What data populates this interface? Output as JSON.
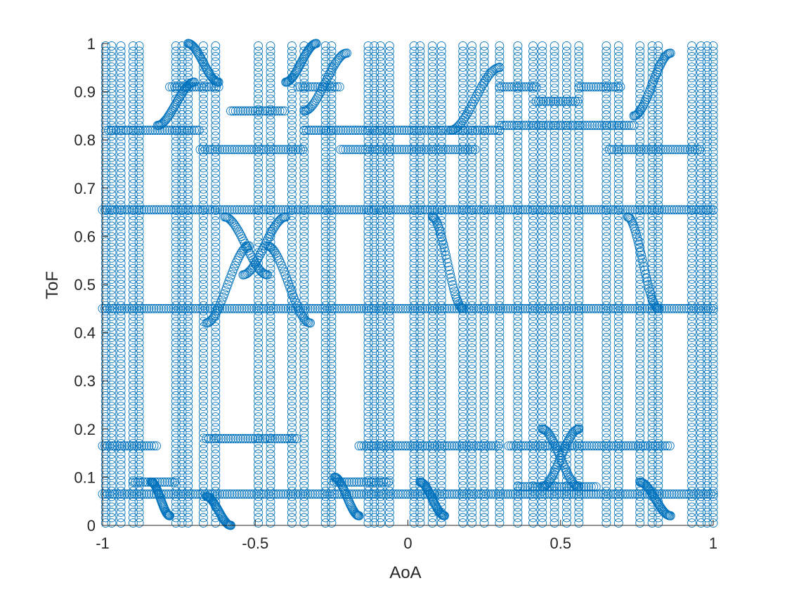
{
  "chart_data": {
    "type": "scatter",
    "title": "",
    "xlabel": "AoA",
    "ylabel": "ToF",
    "xlim": [
      -1,
      1
    ],
    "ylim": [
      0,
      1
    ],
    "xticks": [
      -1,
      -0.5,
      0,
      0.5,
      1
    ],
    "xtick_labels": [
      "-1",
      "-0.5",
      "0",
      "0.5",
      "1"
    ],
    "yticks": [
      0,
      0.1,
      0.2,
      0.3,
      0.4,
      0.5,
      0.6,
      0.7,
      0.8,
      0.9,
      1
    ],
    "ytick_labels": [
      "0",
      "0.1",
      "0.2",
      "0.3",
      "0.4",
      "0.5",
      "0.6",
      "0.7",
      "0.8",
      "0.9",
      "1"
    ],
    "grid": false,
    "legend": "none",
    "marker": "open-circle",
    "series_color": "#0072BD",
    "vertical_tracks_aoa": [
      -0.99,
      -0.97,
      -0.94,
      -0.9,
      -0.88,
      -0.76,
      -0.74,
      -0.72,
      -0.67,
      -0.63,
      -0.49,
      -0.45,
      -0.38,
      -0.34,
      -0.27,
      -0.25,
      -0.13,
      -0.11,
      -0.09,
      -0.06,
      0.02,
      0.04,
      0.08,
      0.11,
      0.18,
      0.21,
      0.25,
      0.3,
      0.36,
      0.41,
      0.44,
      0.48,
      0.52,
      0.56,
      0.65,
      0.69,
      0.76,
      0.8,
      0.82,
      0.93,
      0.96,
      0.98,
      1.0
    ],
    "horizontal_bands": [
      {
        "tof": 0.065,
        "aoa_range": [
          -1.0,
          1.0
        ]
      },
      {
        "tof": 0.45,
        "aoa_range": [
          -1.0,
          1.0
        ]
      },
      {
        "tof": 0.655,
        "aoa_range": [
          -1.0,
          1.0
        ]
      },
      {
        "tof": 0.165,
        "aoa_range": [
          -1.0,
          -0.82
        ]
      },
      {
        "tof": 0.18,
        "aoa_range": [
          -0.66,
          -0.36
        ]
      },
      {
        "tof": 0.165,
        "aoa_range": [
          -0.16,
          0.3
        ]
      },
      {
        "tof": 0.165,
        "aoa_range": [
          0.33,
          0.86
        ]
      },
      {
        "tof": 0.78,
        "aoa_range": [
          -0.68,
          -0.34
        ]
      },
      {
        "tof": 0.82,
        "aoa_range": [
          -0.98,
          -0.68
        ]
      },
      {
        "tof": 0.82,
        "aoa_range": [
          -0.34,
          0.3
        ]
      },
      {
        "tof": 0.78,
        "aoa_range": [
          -0.22,
          0.22
        ]
      },
      {
        "tof": 0.83,
        "aoa_range": [
          0.3,
          0.74
        ]
      },
      {
        "tof": 0.78,
        "aoa_range": [
          0.66,
          0.96
        ]
      },
      {
        "tof": 0.86,
        "aoa_range": [
          -0.58,
          -0.4
        ]
      },
      {
        "tof": 0.91,
        "aoa_range": [
          -0.78,
          -0.62
        ]
      },
      {
        "tof": 0.91,
        "aoa_range": [
          -0.36,
          -0.22
        ]
      },
      {
        "tof": 0.91,
        "aoa_range": [
          0.3,
          0.42
        ]
      },
      {
        "tof": 0.91,
        "aoa_range": [
          0.56,
          0.7
        ]
      },
      {
        "tof": 0.88,
        "aoa_range": [
          0.42,
          0.56
        ]
      },
      {
        "tof": 0.09,
        "aoa_range": [
          -0.9,
          -0.76
        ]
      },
      {
        "tof": 0.09,
        "aoa_range": [
          -0.24,
          -0.06
        ]
      },
      {
        "tof": 0.08,
        "aoa_range": [
          0.36,
          0.62
        ]
      }
    ],
    "curves": [
      {
        "from": [
          -0.52,
          0.58
        ],
        "to": [
          -0.66,
          0.42
        ]
      },
      {
        "from": [
          -0.46,
          0.58
        ],
        "to": [
          -0.32,
          0.42
        ]
      },
      {
        "from": [
          -0.6,
          0.64
        ],
        "to": [
          -0.46,
          0.52
        ]
      },
      {
        "from": [
          -0.4,
          0.64
        ],
        "to": [
          -0.54,
          0.52
        ]
      },
      {
        "from": [
          -0.82,
          0.83
        ],
        "to": [
          -0.7,
          0.92
        ]
      },
      {
        "from": [
          -0.34,
          0.86
        ],
        "to": [
          -0.2,
          0.98
        ]
      },
      {
        "from": [
          -0.62,
          0.92
        ],
        "to": [
          -0.72,
          1.0
        ]
      },
      {
        "from": [
          -0.4,
          0.92
        ],
        "to": [
          -0.3,
          1.0
        ]
      },
      {
        "from": [
          0.14,
          0.82
        ],
        "to": [
          0.3,
          0.95
        ]
      },
      {
        "from": [
          0.74,
          0.85
        ],
        "to": [
          0.86,
          0.98
        ]
      },
      {
        "from": [
          0.08,
          0.64
        ],
        "to": [
          0.18,
          0.45
        ]
      },
      {
        "from": [
          0.72,
          0.64
        ],
        "to": [
          0.82,
          0.45
        ]
      },
      {
        "from": [
          0.44,
          0.2
        ],
        "to": [
          0.56,
          0.08
        ]
      },
      {
        "from": [
          0.56,
          0.2
        ],
        "to": [
          0.44,
          0.08
        ]
      },
      {
        "from": [
          -0.24,
          0.1
        ],
        "to": [
          -0.16,
          0.02
        ]
      },
      {
        "from": [
          0.04,
          0.09
        ],
        "to": [
          0.12,
          0.02
        ]
      },
      {
        "from": [
          0.76,
          0.09
        ],
        "to": [
          0.86,
          0.02
        ]
      },
      {
        "from": [
          -0.84,
          0.09
        ],
        "to": [
          -0.78,
          0.02
        ]
      },
      {
        "from": [
          -0.66,
          0.06
        ],
        "to": [
          -0.58,
          0.0
        ]
      }
    ]
  }
}
